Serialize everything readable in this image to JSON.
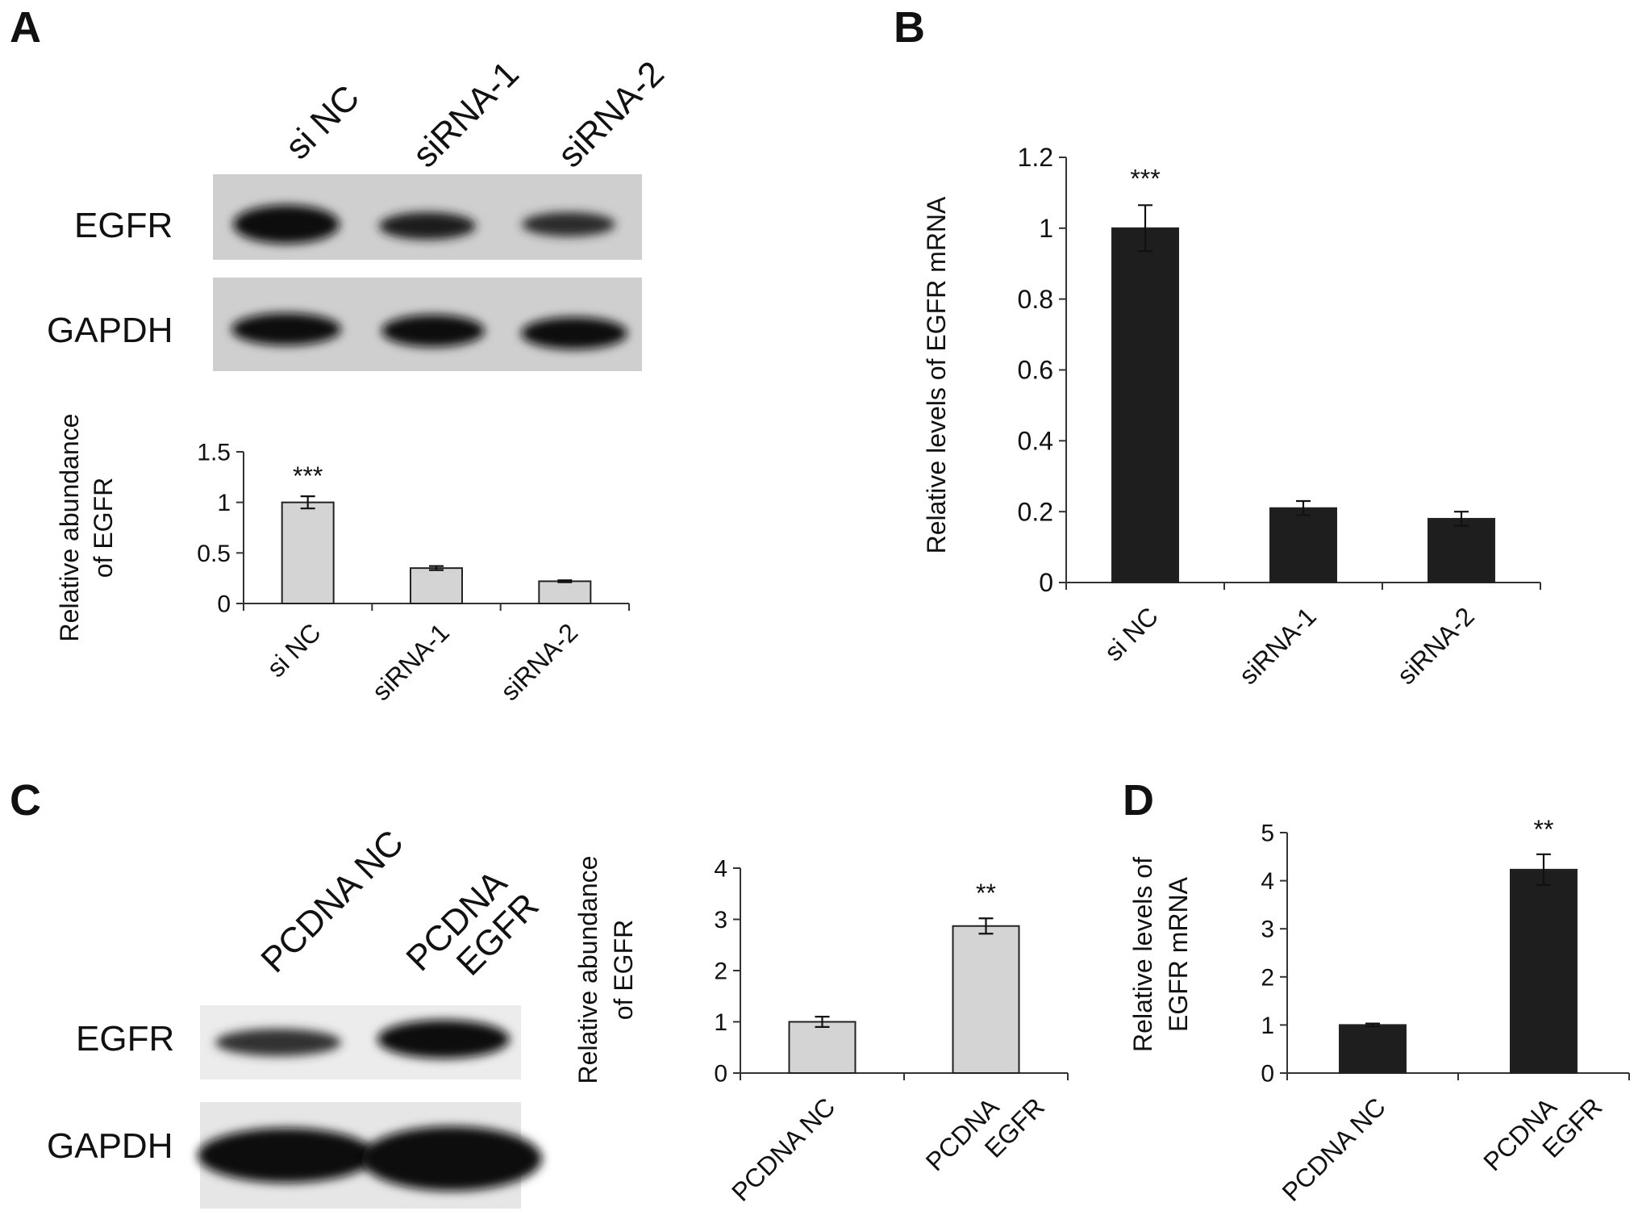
{
  "panels": {
    "A": {
      "letter": "A",
      "lanes": [
        "si NC",
        "siRNA-1",
        "siRNA-2"
      ],
      "blot_rows": [
        "EGFR",
        "GAPDH"
      ]
    },
    "B": {
      "letter": "B"
    },
    "C": {
      "letter": "C",
      "lanes": [
        [
          "PCDNA NC"
        ],
        [
          "PCDNA",
          "EGFR"
        ]
      ],
      "blot_rows": [
        "EGFR",
        "GAPDH"
      ]
    },
    "D": {
      "letter": "D"
    }
  },
  "colors": {
    "bar_gray": "#d4d4d4",
    "bar_black": "#1e1e1e",
    "blot_bg": "#cfcfcf",
    "band": "#111111"
  },
  "chart_data": [
    {
      "id": "A",
      "type": "bar",
      "categories": [
        "si NC",
        "siRNA-1",
        "siRNA-2"
      ],
      "values": [
        1.0,
        0.35,
        0.22
      ],
      "errors": [
        0.06,
        0.02,
        0.01
      ],
      "annotations": [
        "***",
        "",
        ""
      ],
      "ylabel": [
        "Relative abundance",
        "of EGFR"
      ],
      "ylim": [
        0,
        1.5
      ],
      "yticks": [
        "0",
        "0.5",
        "1",
        "1.5"
      ],
      "bar_color": "#d4d4d4"
    },
    {
      "id": "B",
      "type": "bar",
      "categories": [
        "si NC",
        "siRNA-1",
        "siRNA-2"
      ],
      "values": [
        1.0,
        0.21,
        0.18
      ],
      "errors": [
        0.065,
        0.02,
        0.02
      ],
      "annotations": [
        "***",
        "",
        ""
      ],
      "ylabel": [
        "Relative levels of EGFR mRNA"
      ],
      "ylim": [
        0,
        1.2
      ],
      "yticks": [
        "0",
        "0.2",
        "0.4",
        "0.6",
        "0.8",
        "1",
        "1.2"
      ],
      "bar_color": "#1e1e1e"
    },
    {
      "id": "C",
      "type": "bar",
      "categories": [
        [
          "PCDNA NC"
        ],
        [
          "PCDNA",
          "EGFR"
        ]
      ],
      "values": [
        1.0,
        2.87
      ],
      "errors": [
        0.1,
        0.15
      ],
      "annotations": [
        "",
        "**"
      ],
      "ylabel": [
        "Relative abundance",
        "of EGFR"
      ],
      "ylim": [
        0,
        4
      ],
      "yticks": [
        "0",
        "1",
        "2",
        "3",
        "4"
      ],
      "bar_color": "#d4d4d4"
    },
    {
      "id": "D",
      "type": "bar",
      "categories": [
        [
          "PCDNA NC"
        ],
        [
          "PCDNA",
          "EGFR"
        ]
      ],
      "values": [
        1.0,
        4.23
      ],
      "errors": [
        0.03,
        0.32
      ],
      "annotations": [
        "",
        "**"
      ],
      "ylabel": [
        "Relative levels of",
        "EGFR mRNA"
      ],
      "ylim": [
        0,
        5
      ],
      "yticks": [
        "0",
        "1",
        "2",
        "3",
        "4",
        "5"
      ],
      "bar_color": "#1e1e1e"
    }
  ]
}
